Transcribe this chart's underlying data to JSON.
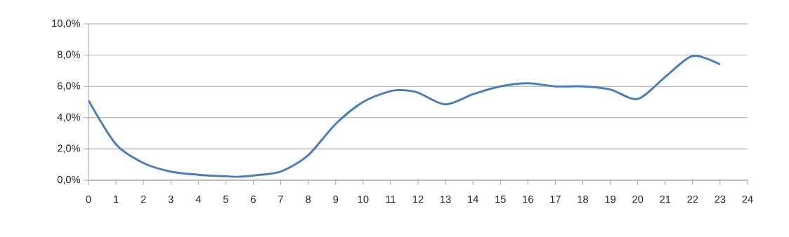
{
  "chart_data": {
    "type": "line",
    "x": [
      0,
      1,
      2,
      3,
      4,
      5,
      5.5,
      6,
      7,
      8,
      9,
      10,
      11,
      11.5,
      12,
      13,
      14,
      15,
      16,
      17,
      18,
      19,
      20,
      21,
      22,
      23
    ],
    "series": [
      {
        "color": "#4a7ebb",
        "values": [
          5.1,
          2.3,
          1.1,
          0.55,
          0.35,
          0.25,
          0.22,
          0.3,
          0.55,
          1.6,
          3.6,
          5.0,
          5.7,
          5.75,
          5.6,
          4.85,
          5.5,
          6.0,
          6.2,
          6.0,
          6.0,
          5.8,
          5.2,
          6.6,
          7.95,
          7.4
        ]
      }
    ],
    "xlim": [
      0,
      24
    ],
    "xticks": [
      0,
      1,
      2,
      3,
      4,
      5,
      6,
      7,
      8,
      9,
      10,
      11,
      12,
      13,
      14,
      15,
      16,
      17,
      18,
      19,
      20,
      21,
      22,
      23,
      24
    ],
    "ylim": [
      0,
      10
    ],
    "yticks": [
      {
        "value": 0,
        "label": "0,0%"
      },
      {
        "value": 2,
        "label": "2,0%"
      },
      {
        "value": 4,
        "label": "4,0%"
      },
      {
        "value": 6,
        "label": "6,0%"
      },
      {
        "value": 8,
        "label": "8,0%"
      },
      {
        "value": 10,
        "label": "10,0%"
      }
    ],
    "grid": "y",
    "marker": "none",
    "line_style": "solid"
  }
}
